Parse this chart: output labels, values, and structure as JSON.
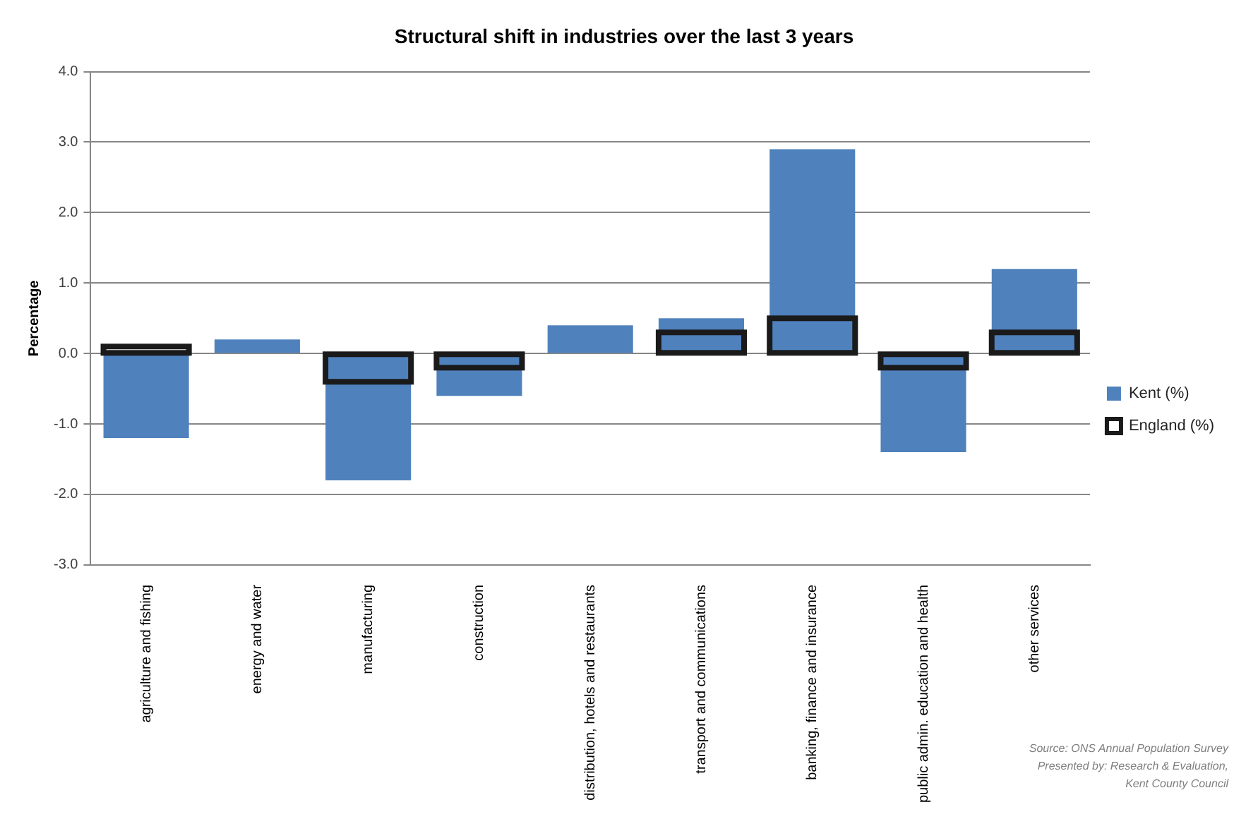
{
  "chart_data": {
    "type": "bar",
    "title": "Structural shift in industries over the last 3 years",
    "ylabel": "Percentage",
    "categories": [
      "agriculture and fishing",
      "energy and water",
      "manufacturing",
      "construction",
      "distribution, hotels and restaurants",
      "transport and communications",
      "banking, finance and insurance",
      "public admin. education and health",
      "other services"
    ],
    "series": [
      {
        "name": "Kent (%)",
        "color": "#4f81bd",
        "values": [
          -1.2,
          0.2,
          -1.8,
          -0.6,
          0.4,
          0.5,
          2.9,
          -1.4,
          1.2
        ]
      },
      {
        "name": "England (%)",
        "color": "#1a1a1a",
        "values": [
          0.1,
          null,
          -0.4,
          -0.2,
          null,
          0.3,
          0.5,
          -0.2,
          0.3
        ]
      }
    ],
    "ylim": [
      -3,
      4
    ],
    "yticks": [
      {
        "value": -3,
        "label": "-3.0"
      },
      {
        "value": -2,
        "label": "-2.0"
      },
      {
        "value": -1,
        "label": "-1.0"
      },
      {
        "value": 0,
        "label": "0.0"
      },
      {
        "value": 1,
        "label": "1.0"
      },
      {
        "value": 2,
        "label": "2.0"
      },
      {
        "value": 3,
        "label": "3.0"
      },
      {
        "value": 4,
        "label": "4.0"
      }
    ],
    "grid": "y",
    "legend": "right",
    "annotations": [
      "Source: ONS Annual Population Survey",
      "Presented by: Research & Evaluation,",
      "Kent County Council"
    ]
  }
}
